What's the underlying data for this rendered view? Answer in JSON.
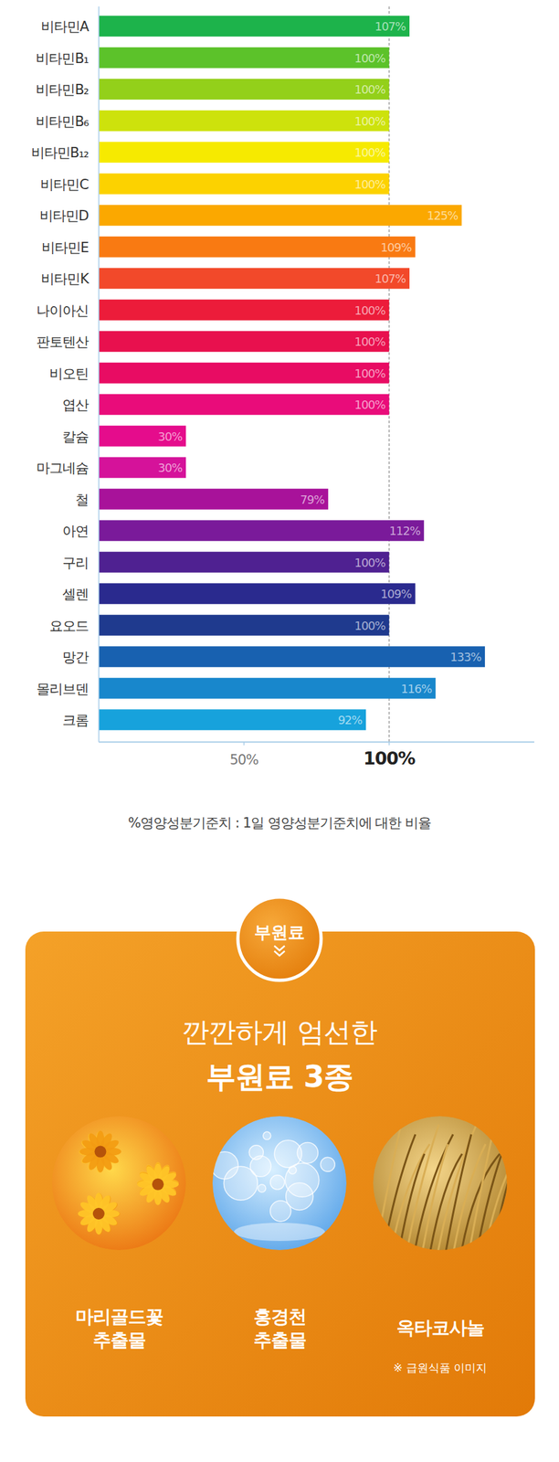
{
  "chart_data": {
    "type": "bar",
    "orientation": "horizontal",
    "categories": [
      "비타민A",
      "비타민B₁",
      "비타민B₂",
      "비타민B₆",
      "비타민B₁₂",
      "비타민C",
      "비타민D",
      "비타민E",
      "비타민K",
      "나이아신",
      "판토텐산",
      "비오틴",
      "엽산",
      "칼슘",
      "마그네슘",
      "철",
      "아연",
      "구리",
      "셀렌",
      "요오드",
      "망간",
      "몰리브덴",
      "크롬"
    ],
    "values": [
      107,
      100,
      100,
      100,
      100,
      100,
      125,
      109,
      107,
      100,
      100,
      100,
      100,
      30,
      30,
      79,
      112,
      100,
      109,
      100,
      133,
      116,
      92
    ],
    "value_labels": [
      "107%",
      "100%",
      "100%",
      "100%",
      "100%",
      "100%",
      "125%",
      "109%",
      "107%",
      "100%",
      "100%",
      "100%",
      "100%",
      "30%",
      "30%",
      "79%",
      "112%",
      "100%",
      "109%",
      "100%",
      "133%",
      "116%",
      "92%"
    ],
    "colors": [
      "#1db34b",
      "#5cc22a",
      "#93d01a",
      "#cde20c",
      "#f6ea00",
      "#fcd200",
      "#fba800",
      "#f97a12",
      "#f2492a",
      "#ec1c3a",
      "#e8104e",
      "#e80c63",
      "#e90c7a",
      "#e50c8c",
      "#d5129a",
      "#a8129a",
      "#7a1a9a",
      "#4f2191",
      "#2a2a8e",
      "#1f3a8e",
      "#1861b0",
      "#1887cc",
      "#17a2dc"
    ],
    "xlim": [
      0,
      150
    ],
    "xticks": [
      {
        "value": 50,
        "label": "50%"
      },
      {
        "value": 100,
        "label": "100%"
      }
    ],
    "grid": true,
    "data_labels": true,
    "footnote": "%영양성분기준치 : 1일 영양성분기준치에 대한 비율"
  },
  "supplement": {
    "badge": "부원료",
    "title_lines": [
      "깐깐하게 엄선한",
      "부원료 3종"
    ],
    "items": [
      {
        "label": [
          "마리골드꽃",
          "추출물"
        ]
      },
      {
        "label": [
          "홍경천",
          "추출물"
        ]
      },
      {
        "label": [
          "옥타코사놀"
        ],
        "note": "※ 급원식품 이미지"
      }
    ]
  }
}
